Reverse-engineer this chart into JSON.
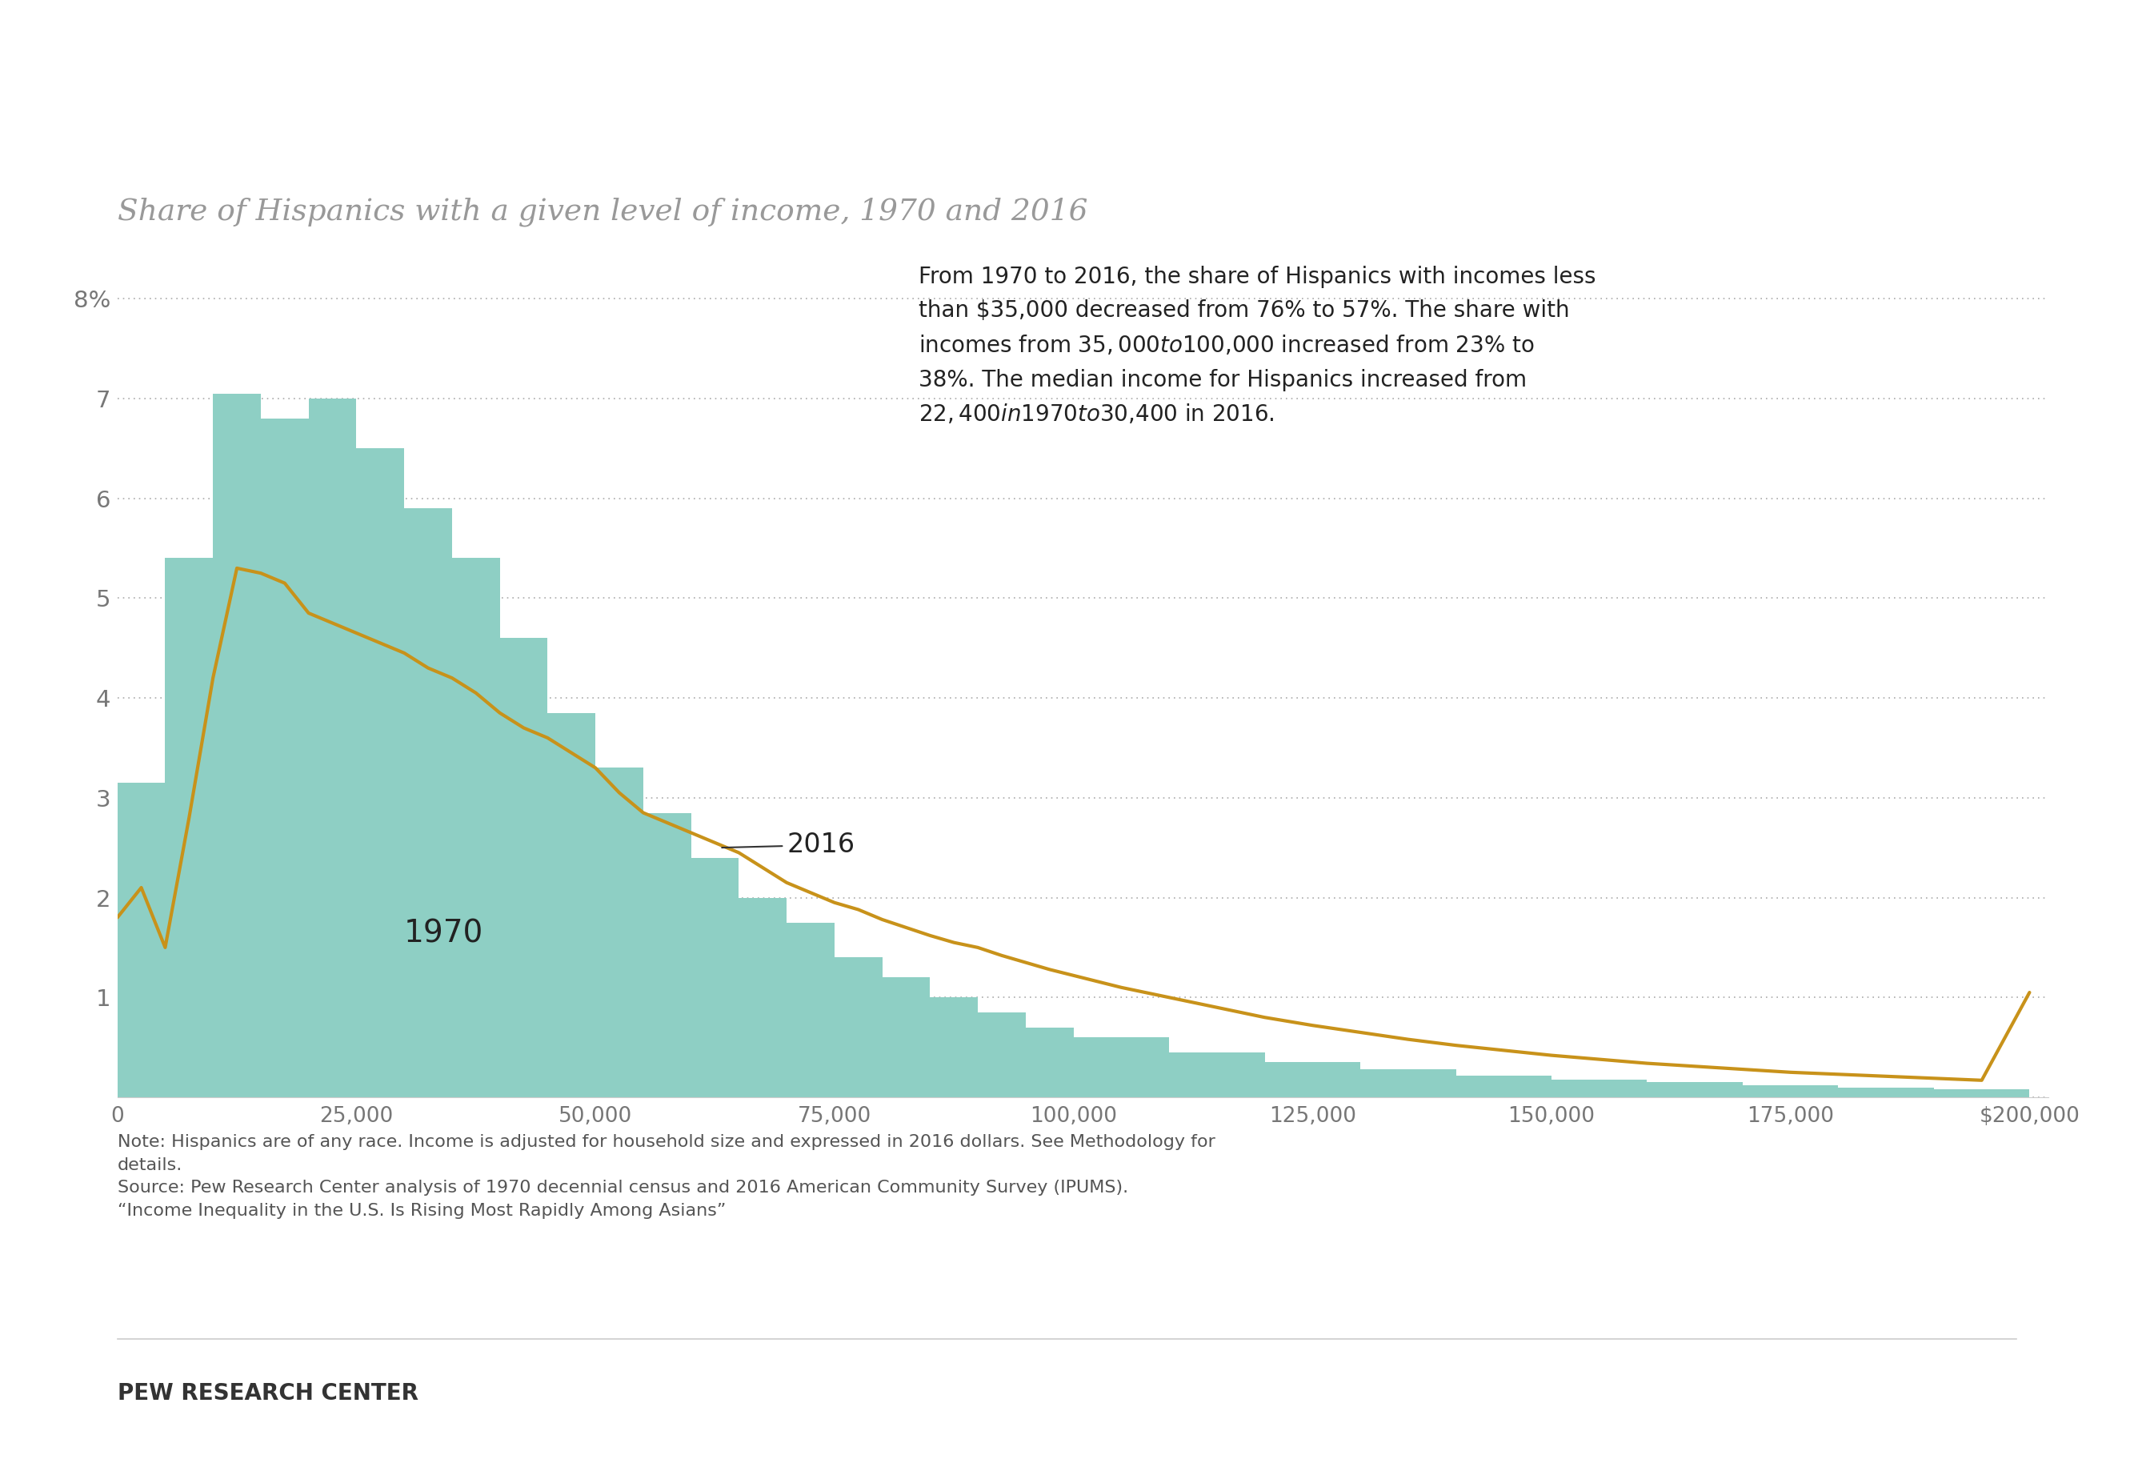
{
  "title": "Share of Hispanics with a given level of income, 1970 and 2016",
  "bar_color": "#8ecfC4",
  "line_color": "#c8921a",
  "background_color": "#ffffff",
  "annotation_line1": "From 1970 to 2016, the share of Hispanics with incomes less",
  "annotation_line2": "than $35,000 decreased from 76% to 57%. The share with",
  "annotation_line3": "incomes from $35,000 to $100,000 increased from 23% to",
  "annotation_line4": "38%. The median income for Hispanics increased from",
  "annotation_line5": "$22,400 in 1970 to $30,400 in 2016.",
  "label_1970": "1970",
  "label_2016": "2016",
  "note_text": "Note: Hispanics are of any race. Income is adjusted for household size and expressed in 2016 dollars. See Methodology for\ndetails.\nSource: Pew Research Center analysis of 1970 decennial census and 2016 American Community Survey (IPUMS).\n“Income Inequality in the U.S. Is Rising Most Rapidly Among Asians”",
  "footer_text": "PEW RESEARCH CENTER",
  "ylim": [
    0,
    8.5
  ],
  "yticks": [
    0,
    1,
    2,
    3,
    4,
    5,
    6,
    7,
    8
  ],
  "ytick_labels": [
    "",
    "1",
    "2",
    "3",
    "4",
    "5",
    "6",
    "7",
    "8%"
  ],
  "xtick_labels": [
    "0",
    "25,000",
    "50,000",
    "75,000",
    "100,000",
    "125,000",
    "150,000",
    "175,000",
    "$200,000"
  ],
  "xtick_positions": [
    0,
    25000,
    50000,
    75000,
    100000,
    125000,
    150000,
    175000,
    200000
  ],
  "bar_edges": [
    0,
    5000,
    10000,
    15000,
    20000,
    25000,
    30000,
    35000,
    40000,
    45000,
    50000,
    55000,
    60000,
    65000,
    70000,
    75000,
    80000,
    85000,
    90000,
    95000,
    100000,
    110000,
    120000,
    130000,
    140000,
    150000,
    160000,
    170000,
    180000,
    190000,
    200000
  ],
  "bar_heights": [
    3.15,
    5.4,
    7.05,
    6.8,
    7.0,
    6.5,
    5.9,
    5.4,
    4.6,
    3.85,
    3.3,
    2.85,
    2.4,
    2.0,
    1.75,
    1.4,
    1.2,
    1.0,
    0.85,
    0.7,
    0.6,
    0.45,
    0.35,
    0.28,
    0.22,
    0.18,
    0.15,
    0.12,
    0.1,
    0.08
  ],
  "line_x": [
    0,
    2500,
    5000,
    7500,
    10000,
    12500,
    15000,
    17500,
    20000,
    22500,
    25000,
    27500,
    30000,
    32500,
    35000,
    37500,
    40000,
    42500,
    45000,
    47500,
    50000,
    52500,
    55000,
    57500,
    60000,
    62500,
    65000,
    67500,
    70000,
    72500,
    75000,
    77500,
    80000,
    82500,
    85000,
    87500,
    90000,
    92500,
    95000,
    97500,
    100000,
    105000,
    110000,
    115000,
    120000,
    125000,
    130000,
    135000,
    140000,
    145000,
    150000,
    155000,
    160000,
    165000,
    170000,
    175000,
    180000,
    185000,
    190000,
    195000,
    200000
  ],
  "line_y": [
    1.8,
    2.1,
    1.5,
    2.8,
    4.2,
    5.3,
    5.25,
    5.15,
    4.85,
    4.75,
    4.65,
    4.55,
    4.45,
    4.3,
    4.2,
    4.05,
    3.85,
    3.7,
    3.6,
    3.45,
    3.3,
    3.05,
    2.85,
    2.75,
    2.65,
    2.55,
    2.45,
    2.3,
    2.15,
    2.05,
    1.95,
    1.88,
    1.78,
    1.7,
    1.62,
    1.55,
    1.5,
    1.42,
    1.35,
    1.28,
    1.22,
    1.1,
    1.0,
    0.9,
    0.8,
    0.72,
    0.65,
    0.58,
    0.52,
    0.47,
    0.42,
    0.38,
    0.34,
    0.31,
    0.28,
    0.25,
    0.23,
    0.21,
    0.19,
    0.17,
    1.05
  ]
}
